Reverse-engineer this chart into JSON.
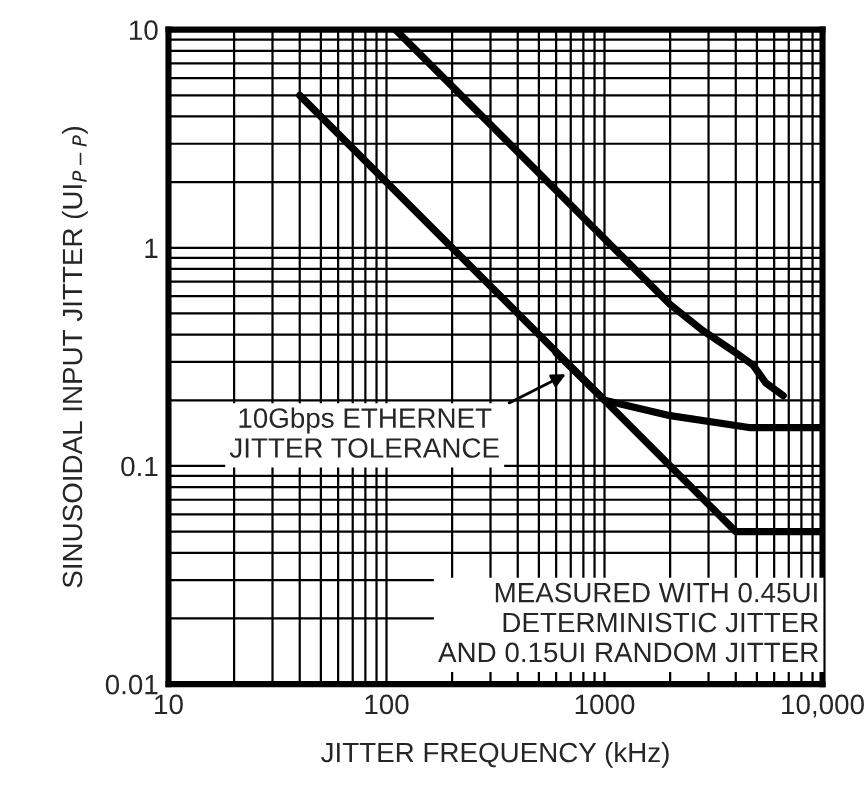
{
  "chart_data": {
    "type": "line",
    "xlabel": "JITTER FREQUENCY (kHz)",
    "ylabel": "SINUSOIDAL INPUT JITTER (UI$_{P−P}$)",
    "log": "xy",
    "xlim": [
      10,
      10000
    ],
    "ylim": [
      0.01,
      10
    ],
    "xticks": [
      10,
      100,
      1000,
      {
        "value": 10000,
        "label": "10,000"
      }
    ],
    "yticks": [
      0.01,
      0.1,
      1,
      10
    ],
    "grid": true,
    "legend": false,
    "marker": "none",
    "line_style": "solid",
    "series": [
      {
        "color": "#000000",
        "x": [
          40,
          4000,
          10000
        ],
        "values": [
          5,
          0.05,
          0.05
        ]
      },
      {
        "color": "#000000",
        "x": [
          600,
          1000,
          2000,
          4600,
          10000
        ],
        "values": [
          0.33,
          0.2,
          0.17,
          0.15,
          0.15
        ]
      },
      {
        "color": "#000000",
        "x": [
          110,
          1000,
          2000,
          2800,
          4000,
          4800,
          5500,
          6600
        ],
        "values": [
          10,
          1.1,
          0.55,
          0.42,
          0.33,
          0.29,
          0.24,
          0.21
        ]
      }
    ],
    "annotations": [
      {
        "text": "10Gbps ETHERNET\nJITTER TOLERANCE",
        "x": 700,
        "y": 0.27
      },
      "MEASURED WITH 0.45UI\nDETERMINISTIC JITTER\nAND 0.15UI RANDOM JITTER"
    ]
  }
}
